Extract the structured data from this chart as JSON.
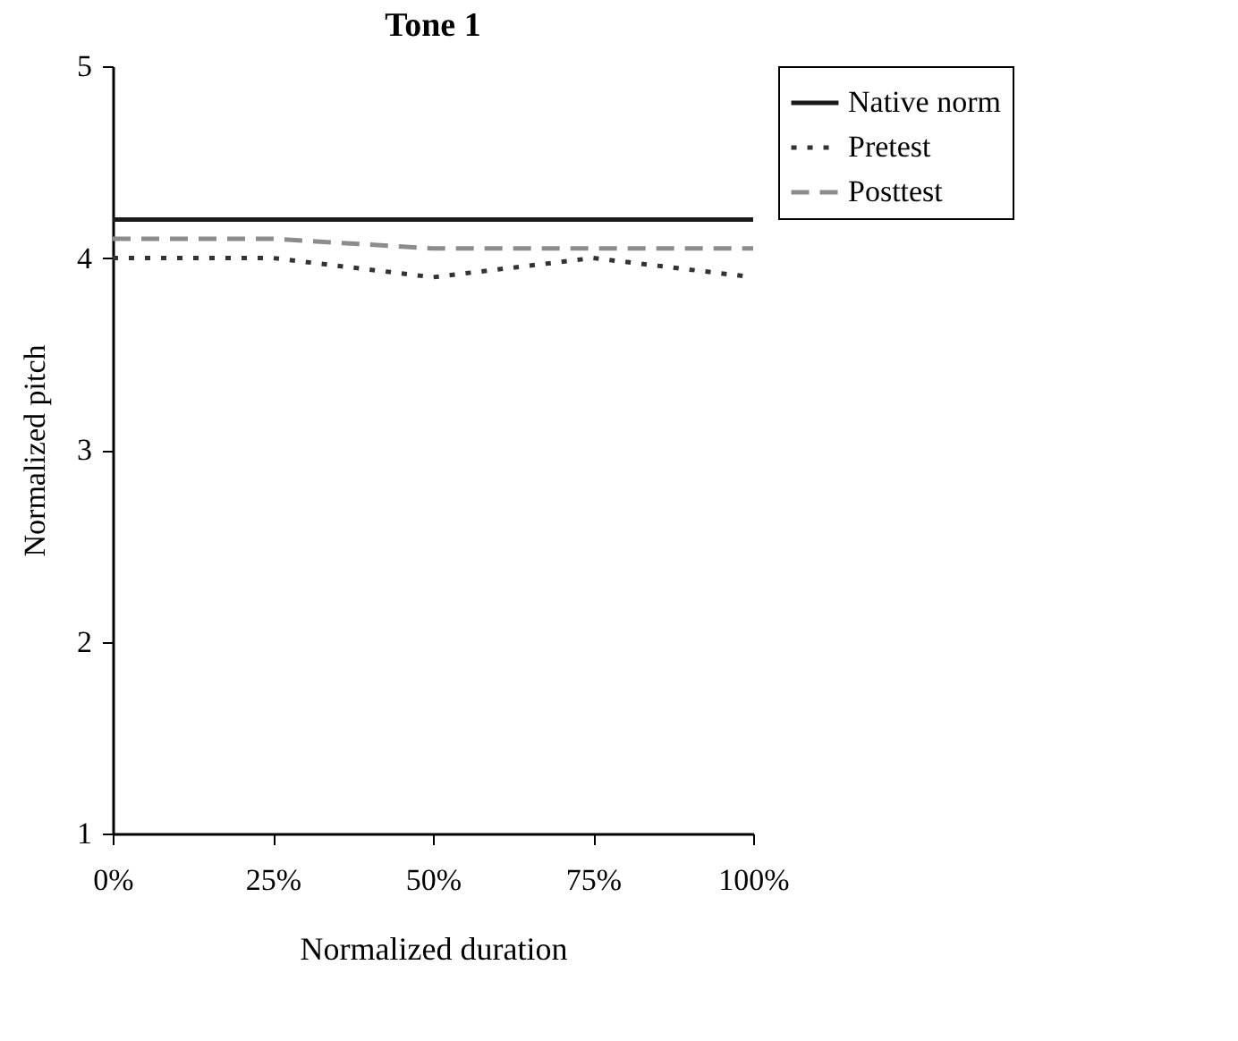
{
  "chart_data": {
    "type": "line",
    "title": "Tone 1",
    "xlabel": "Normalized duration",
    "ylabel": "Normalized pitch",
    "categories": [
      "0%",
      "25%",
      "50%",
      "75%",
      "100%"
    ],
    "series": [
      {
        "name": "Native norm",
        "color": "#1a1a1a",
        "line_style": "solid",
        "values": [
          4.2,
          4.2,
          4.2,
          4.2,
          4.2
        ]
      },
      {
        "name": "Pretest",
        "color": "#333333",
        "line_style": "dotted",
        "values": [
          4.0,
          4.0,
          3.9,
          4.0,
          3.9
        ]
      },
      {
        "name": "Posttest",
        "color": "#8c8c8c",
        "line_style": "dashed",
        "values": [
          4.1,
          4.1,
          4.05,
          4.05,
          4.05
        ]
      }
    ],
    "ylim": [
      1,
      5
    ],
    "yticks": [
      1,
      2,
      3,
      4,
      5
    ],
    "grid": false,
    "legend": "top right",
    "marker": "none"
  }
}
